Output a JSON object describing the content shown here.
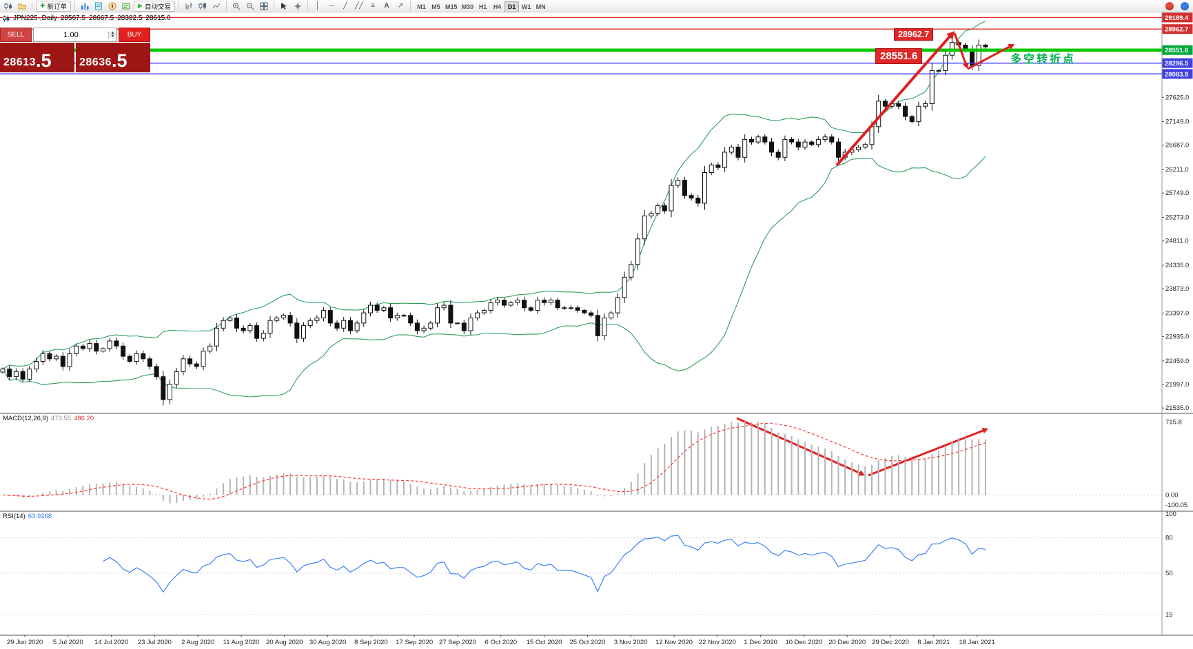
{
  "toolbar": {
    "new_order_label": "新订单",
    "autotrading_label": "自动交易",
    "timeframes": [
      "M1",
      "M5",
      "M15",
      "M30",
      "H1",
      "H4",
      "D1",
      "W1",
      "MN"
    ],
    "active_timeframe": "D1",
    "icons": [
      "new-chart",
      "profiles",
      "market-watch",
      "data-window",
      "navigator",
      "terminal",
      "bar-chart",
      "candlestick-chart",
      "line-chart",
      "zoom-in",
      "zoom-out",
      "tile-windows",
      "cursor",
      "crosshair",
      "vertical-line",
      "horizontal-line",
      "trendline",
      "channel",
      "fibonacci",
      "text-label",
      "arrow-tools",
      "notification",
      "community"
    ]
  },
  "chart_header": {
    "symbol": "JPN225-,Daily",
    "open": "28567.5",
    "high": "28667.5",
    "low": "28382.5",
    "close": "28615.0"
  },
  "trade_panel": {
    "sell_label": "SELL",
    "buy_label": "BUY",
    "lot": "1.00",
    "sell_price_main": "28613",
    "sell_price_frac": ".5",
    "buy_price_main": "28636",
    "buy_price_frac": ".5"
  },
  "annotations": {
    "resistance": "28962.7",
    "support": "28551.6",
    "note": "多空转折点"
  },
  "price_scale": {
    "special": [
      {
        "label": "29189.4",
        "value": 29189.4,
        "color": "#d33030",
        "line": "thin-red"
      },
      {
        "label": "28962.7",
        "value": 28962.7,
        "color": "#d33030",
        "line": "thin-red"
      },
      {
        "label": "28551.6",
        "value": 28551.6,
        "color": "#00a83a",
        "line": "thick-green"
      },
      {
        "label": "28296.5",
        "value": 28296.5,
        "color": "#4040e0",
        "line": "thin-blue"
      },
      {
        "label": "28083.9",
        "value": 28083.9,
        "color": "#4040e0",
        "line": "thin-blue"
      }
    ],
    "ticks": [
      {
        "label": "27625.0",
        "value": 27625.0
      },
      {
        "label": "27149.0",
        "value": 27149.0
      },
      {
        "label": "26687.0",
        "value": 26687.0
      },
      {
        "label": "26211.0",
        "value": 26211.0
      },
      {
        "label": "25749.0",
        "value": 25749.0
      },
      {
        "label": "25273.0",
        "value": 25273.0
      },
      {
        "label": "24811.0",
        "value": 24811.0
      },
      {
        "label": "24335.0",
        "value": 24335.0
      },
      {
        "label": "23873.0",
        "value": 23873.0
      },
      {
        "label": "23397.0",
        "value": 23397.0
      },
      {
        "label": "22935.0",
        "value": 22935.0
      },
      {
        "label": "22459.0",
        "value": 22459.0
      },
      {
        "label": "21997.0",
        "value": 21997.0
      },
      {
        "label": "21535.0",
        "value": 21535.0
      }
    ]
  },
  "indicators": {
    "macd": {
      "label": "MACD(12,26,9)",
      "value_main": "473.55",
      "value_signal": "486.20",
      "scale": [
        {
          "label": "715.8",
          "value": 715.8
        },
        {
          "label": "0.00",
          "value": 0
        },
        {
          "label": "-100.05",
          "value": -100.05
        }
      ]
    },
    "rsi": {
      "label": "RSI(14)",
      "value": "63.9268",
      "scale": [
        {
          "label": "100",
          "value": 100
        },
        {
          "label": "80",
          "value": 80
        },
        {
          "label": "50",
          "value": 50
        },
        {
          "label": "15",
          "value": 15
        }
      ]
    }
  },
  "time_axis": {
    "labels": [
      "29 Jun 2020",
      "5 Jul 2020",
      "14 Jul 2020",
      "23 Jul 2020",
      "2 Aug 2020",
      "11 Aug 2020",
      "20 Aug 2020",
      "30 Aug 2020",
      "8 Sep 2020",
      "17 Sep 2020",
      "27 Sep 2020",
      "6 Oct 2020",
      "15 Oct 2020",
      "25 Oct 2020",
      "3 Nov 2020",
      "12 Nov 2020",
      "22 Nov 2020",
      "1 Dec 2020",
      "10 Dec 2020",
      "20 Dec 2020",
      "29 Dec 2020",
      "8 Jan 2021",
      "18 Jan 2021"
    ]
  },
  "chart_data": {
    "type": "candlestick",
    "symbol": "JPN225-",
    "timeframe": "Daily",
    "title": "JPN225- Daily with Bollinger Bands, MACD(12,26,9), RSI(14)",
    "y_range": [
      21430,
      29290
    ],
    "ohlc_last": {
      "open": 28567.5,
      "high": 28667.5,
      "low": 28382.5,
      "close": 28615.0
    },
    "closes": [
      22300,
      22150,
      22250,
      22100,
      22300,
      22450,
      22600,
      22500,
      22550,
      22350,
      22600,
      22750,
      22700,
      22800,
      22650,
      22700,
      22850,
      22750,
      22550,
      22450,
      22600,
      22500,
      22350,
      22150,
      21700,
      22000,
      22250,
      22500,
      22400,
      22350,
      22650,
      22750,
      23100,
      23250,
      23300,
      23100,
      23050,
      23150,
      22900,
      23000,
      23250,
      23300,
      23350,
      23200,
      22900,
      23150,
      23250,
      23300,
      23450,
      23200,
      23100,
      23250,
      23050,
      23200,
      23400,
      23550,
      23450,
      23500,
      23300,
      23350,
      23350,
      23200,
      23050,
      23100,
      23200,
      23500,
      23550,
      23200,
      23200,
      23050,
      23300,
      23400,
      23450,
      23600,
      23650,
      23550,
      23600,
      23650,
      23500,
      23450,
      23650,
      23600,
      23650,
      23500,
      23500,
      23500,
      23450,
      23400,
      23350,
      22950,
      23300,
      23400,
      23700,
      24100,
      24350,
      24850,
      25300,
      25350,
      25500,
      25400,
      25900,
      26000,
      25700,
      25650,
      25550,
      26150,
      26300,
      26250,
      26550,
      26650,
      26450,
      26800,
      26750,
      26850,
      26750,
      26550,
      26450,
      26800,
      26750,
      26650,
      26750,
      26700,
      26800,
      26850,
      26750,
      26450,
      26550,
      26600,
      26650,
      26700,
      27050,
      27550,
      27450,
      27500,
      27450,
      27250,
      27150,
      27450,
      27500,
      28150,
      28150,
      28450,
      28700,
      28650,
      28550,
      28250,
      28650,
      28615
    ],
    "overlays": [
      {
        "name": "Bollinger Bands",
        "period": 20,
        "deviation": 2,
        "color": "#2e9e5b"
      }
    ],
    "hlines": [
      29189.4,
      28962.7,
      28551.6,
      28296.5,
      28083.9
    ],
    "subcharts": [
      {
        "type": "macd-histogram",
        "label": "MACD(12,26,9)",
        "values": [
          473.55,
          486.2
        ],
        "y_range": [
          -140,
          780
        ]
      },
      {
        "type": "rsi-line",
        "label": "RSI(14)",
        "value": 63.9268,
        "levels": [
          80,
          50,
          15
        ],
        "y_range": [
          0,
          100
        ]
      }
    ],
    "drawings": {
      "color": "#e02020",
      "main_arrows": [
        {
          "from": [
            1214,
            240
          ],
          "to": [
            1385,
            45
          ],
          "width": 4
        },
        {
          "from": [
            1385,
            48
          ],
          "to": [
            1404,
            100
          ],
          "width": 3
        },
        {
          "from": [
            1404,
            100
          ],
          "to": [
            1472,
            64
          ],
          "width": 3
        }
      ],
      "macd_arrows": [
        {
          "from": [
            1069,
            607
          ],
          "to": [
            1255,
            690
          ],
          "width": 3
        },
        {
          "from": [
            1260,
            690
          ],
          "to": [
            1434,
            622
          ],
          "width": 3
        }
      ]
    }
  }
}
